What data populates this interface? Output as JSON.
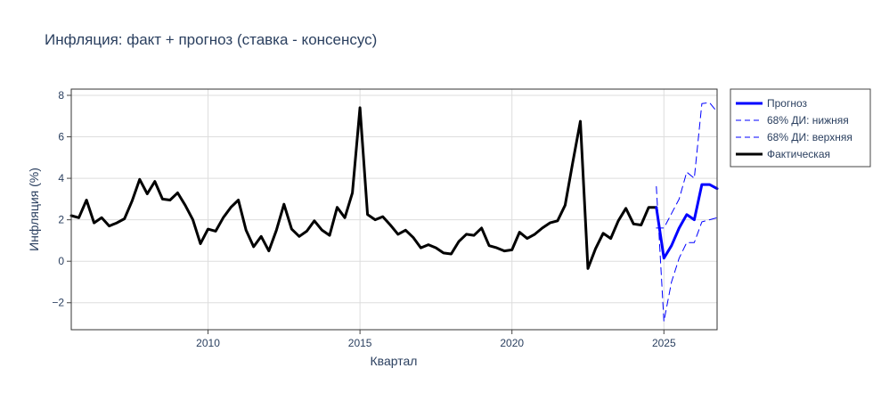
{
  "chart_data": {
    "type": "line",
    "title": "Инфляция: факт + прогноз (ставка - консенсус)",
    "xlabel": "Квартал",
    "ylabel": "Инфляция (%)",
    "xlim": [
      2005.5,
      2026.75
    ],
    "ylim": [
      -3.3,
      8.3
    ],
    "x_ticks": [
      2010,
      2015,
      2020,
      2025
    ],
    "y_ticks": [
      -2,
      0,
      2,
      4,
      6,
      8
    ],
    "grid": true,
    "legend_position": "top-right, outside plot",
    "series": [
      {
        "name": "Прогноз",
        "color": "#0000ff",
        "style": "solid",
        "x": [
          2024.75,
          2025.0,
          2025.25,
          2025.5,
          2025.75,
          2026.0,
          2026.25,
          2026.5,
          2026.75
        ],
        "y": [
          2.6,
          0.15,
          0.75,
          1.6,
          2.25,
          2.0,
          3.7,
          3.7,
          3.5
        ]
      },
      {
        "name": "68% ДИ: нижняя",
        "color": "#0000ff",
        "style": "dash",
        "x": [
          2024.75,
          2025.0,
          2025.25,
          2025.5,
          2025.75,
          2026.0,
          2026.25,
          2026.5,
          2026.75
        ],
        "y": [
          3.6,
          -2.9,
          -1.0,
          0.15,
          0.9,
          0.9,
          1.9,
          2.0,
          2.1
        ]
      },
      {
        "name": "68% ДИ: верхняя",
        "color": "#0000ff",
        "style": "dash",
        "x": [
          2024.75,
          2025.0,
          2025.25,
          2025.5,
          2025.75,
          2026.0,
          2026.25,
          2026.5,
          2026.75
        ],
        "y": [
          1.6,
          1.6,
          2.3,
          3.0,
          4.3,
          4.0,
          7.6,
          7.65,
          7.2
        ]
      },
      {
        "name": "Фактическая",
        "color": "#000000",
        "style": "solid",
        "x": [
          2005.5,
          2005.75,
          2006.0,
          2006.25,
          2006.5,
          2006.75,
          2007.0,
          2007.25,
          2007.5,
          2007.75,
          2008.0,
          2008.25,
          2008.5,
          2008.75,
          2009.0,
          2009.25,
          2009.5,
          2009.75,
          2010.0,
          2010.25,
          2010.5,
          2010.75,
          2011.0,
          2011.25,
          2011.5,
          2011.75,
          2012.0,
          2012.25,
          2012.5,
          2012.75,
          2013.0,
          2013.25,
          2013.5,
          2013.75,
          2014.0,
          2014.25,
          2014.5,
          2014.75,
          2015.0,
          2015.25,
          2015.5,
          2015.75,
          2016.0,
          2016.25,
          2016.5,
          2016.75,
          2017.0,
          2017.25,
          2017.5,
          2017.75,
          2018.0,
          2018.25,
          2018.5,
          2018.75,
          2019.0,
          2019.25,
          2019.5,
          2019.75,
          2020.0,
          2020.25,
          2020.5,
          2020.75,
          2021.0,
          2021.25,
          2021.5,
          2021.75,
          2022.0,
          2022.25,
          2022.5,
          2022.75,
          2023.0,
          2023.25,
          2023.5,
          2023.75,
          2024.0,
          2024.25,
          2024.5,
          2024.75
        ],
        "y": [
          2.2,
          2.1,
          2.95,
          1.85,
          2.1,
          1.7,
          1.85,
          2.05,
          2.9,
          3.95,
          3.25,
          3.85,
          3.0,
          2.95,
          3.3,
          2.7,
          2.0,
          0.85,
          1.55,
          1.45,
          2.1,
          2.6,
          2.95,
          1.5,
          0.7,
          1.2,
          0.5,
          1.5,
          2.75,
          1.55,
          1.2,
          1.45,
          1.95,
          1.5,
          1.25,
          2.6,
          2.1,
          3.3,
          7.4,
          2.25,
          2.0,
          2.15,
          1.75,
          1.3,
          1.5,
          1.15,
          0.65,
          0.8,
          0.65,
          0.4,
          0.35,
          0.95,
          1.3,
          1.25,
          1.6,
          0.75,
          0.65,
          0.5,
          0.55,
          1.4,
          1.1,
          1.3,
          1.6,
          1.85,
          1.95,
          2.7,
          4.75,
          6.75,
          -0.35,
          0.6,
          1.35,
          1.1,
          1.95,
          2.55,
          1.8,
          1.75,
          2.6,
          2.6
        ]
      }
    ]
  }
}
